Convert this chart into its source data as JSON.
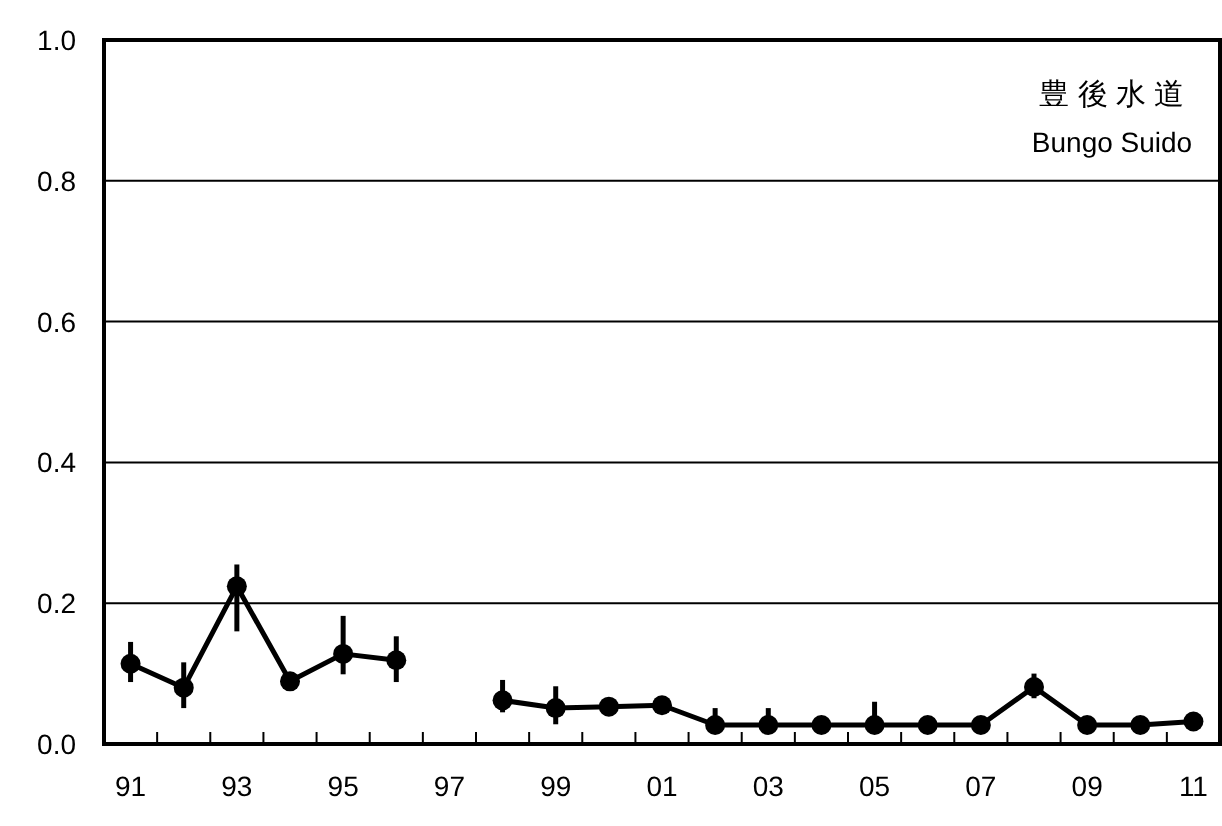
{
  "chart_data": {
    "type": "line",
    "title": "豊 後 水 道",
    "subtitle": "Bungo Suido",
    "categories": [
      "91",
      null,
      "93",
      null,
      "95",
      null,
      "97",
      null,
      "99",
      null,
      "01",
      null,
      "03",
      null,
      "05",
      null,
      "07",
      null,
      "09",
      null,
      "11"
    ],
    "series": [
      {
        "color": "#000000",
        "values": [
          0.114,
          0.08,
          0.224,
          0.089,
          0.128,
          0.119,
          null,
          0.062,
          0.051,
          0.053,
          0.055,
          0.027,
          0.027,
          0.027,
          0.027,
          0.027,
          0.027,
          0.081,
          0.027,
          0.027,
          0.032
        ],
        "errors": [
          [
            0.088,
            0.145
          ],
          [
            0.051,
            0.116
          ],
          [
            0.16,
            0.255
          ],
          null,
          [
            0.099,
            0.182
          ],
          [
            0.088,
            0.153
          ],
          null,
          [
            0.045,
            0.091
          ],
          [
            0.028,
            0.082
          ],
          null,
          null,
          [
            0.027,
            0.051
          ],
          [
            0.027,
            0.051
          ],
          null,
          [
            0.027,
            0.06
          ],
          null,
          null,
          [
            0.065,
            0.1
          ],
          null,
          null,
          null
        ]
      }
    ],
    "ylim": [
      0,
      1
    ],
    "yticks": [
      {
        "value": 0,
        "label": "0.0"
      },
      {
        "value": 0.2,
        "label": "0.2"
      },
      {
        "value": 0.4,
        "label": "0.4"
      },
      {
        "value": 0.6,
        "label": "0.6"
      },
      {
        "value": 0.8,
        "label": "0.8"
      },
      {
        "value": 1,
        "label": "1.0"
      }
    ],
    "grid": "y",
    "marker": "circle",
    "line_style": "solid"
  }
}
